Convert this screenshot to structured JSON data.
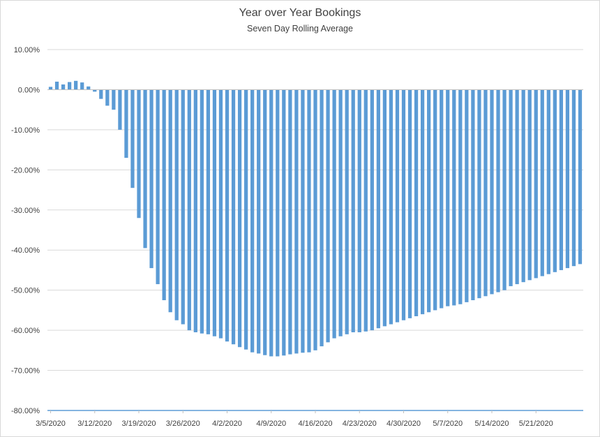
{
  "chart_data": {
    "type": "bar",
    "title": "Year over Year Bookings",
    "subtitle": "Seven Day Rolling Average",
    "xlabel": "",
    "ylabel": "",
    "ylim": [
      -80,
      10
    ],
    "y_ticks": [
      10,
      0,
      -10,
      -20,
      -30,
      -40,
      -50,
      -60,
      -70,
      -80
    ],
    "y_tick_labels": [
      "10.00%",
      "0.00%",
      "-10.00%",
      "-20.00%",
      "-30.00%",
      "-40.00%",
      "-50.00%",
      "-60.00%",
      "-70.00%",
      "-80.00%"
    ],
    "x_tick_labels": [
      "3/5/2020",
      "3/12/2020",
      "3/19/2020",
      "3/26/2020",
      "4/2/2020",
      "4/9/2020",
      "4/16/2020",
      "4/23/2020",
      "4/30/2020",
      "5/7/2020",
      "5/14/2020",
      "5/21/2020"
    ],
    "first_date": "3/5/2020",
    "grid": true,
    "legend": "none",
    "bar_color": "#5b9bd5",
    "values": [
      0.7,
      2.0,
      1.3,
      1.9,
      2.2,
      1.8,
      0.8,
      -0.5,
      -2.3,
      -4.0,
      -5.0,
      -10.0,
      -17.0,
      -24.5,
      -32.0,
      -39.5,
      -44.5,
      -48.5,
      -52.5,
      -55.5,
      -57.5,
      -58.5,
      -60.0,
      -60.5,
      -60.8,
      -61.0,
      -61.5,
      -62.0,
      -62.8,
      -63.5,
      -64.2,
      -64.8,
      -65.5,
      -65.8,
      -66.2,
      -66.5,
      -66.5,
      -66.3,
      -66.0,
      -65.8,
      -65.6,
      -65.5,
      -65.0,
      -64.0,
      -63.0,
      -62.0,
      -61.5,
      -61.0,
      -60.5,
      -60.5,
      -60.3,
      -60.0,
      -59.5,
      -59.0,
      -58.5,
      -58.0,
      -57.5,
      -57.0,
      -56.5,
      -56.0,
      -55.5,
      -55.0,
      -54.5,
      -54.0,
      -53.8,
      -53.5,
      -53.0,
      -52.5,
      -52.0,
      -51.5,
      -51.0,
      -50.5,
      -50.0,
      -49.0,
      -48.5,
      -48.0,
      -47.5,
      -47.0,
      -46.5,
      -46.0,
      -45.5,
      -45.0,
      -44.5,
      -44.0,
      -43.5
    ]
  }
}
